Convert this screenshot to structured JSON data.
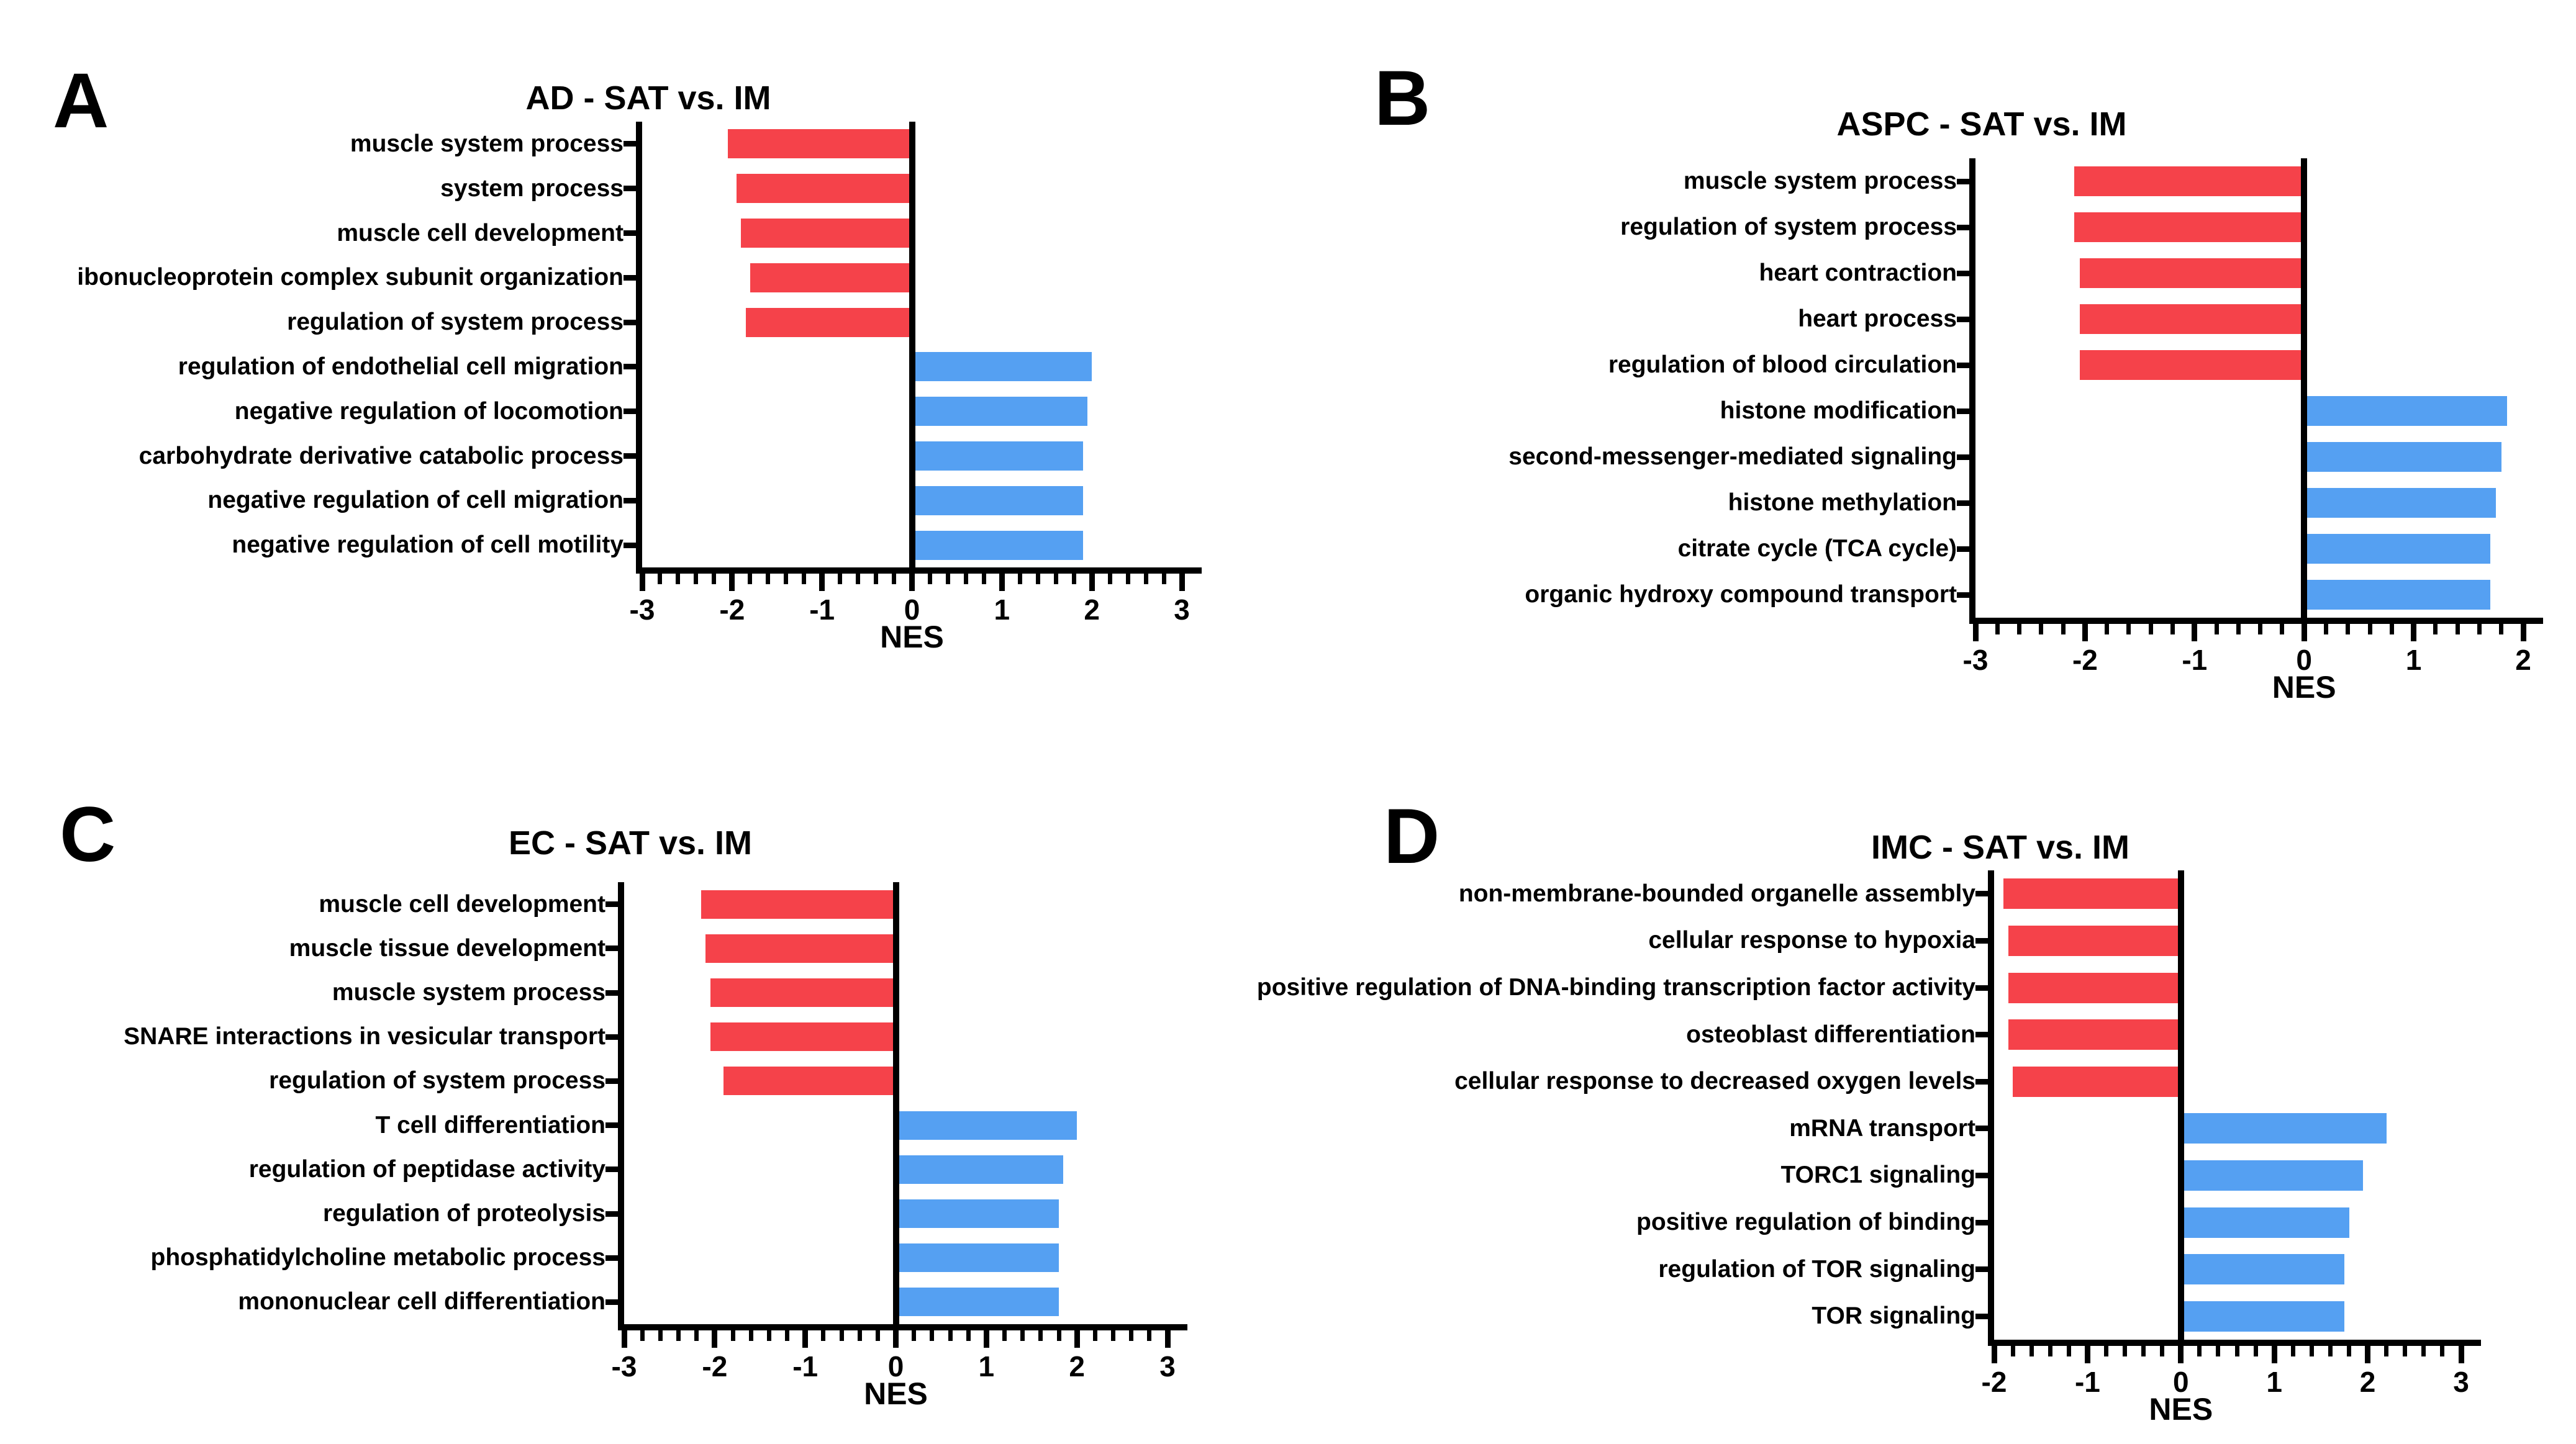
{
  "figure": {
    "xlabel": "NES",
    "colors": {
      "negative_bar": "#F5424A",
      "positive_bar": "#55A0F2",
      "axis": "#000000",
      "background": "#FFFFFF"
    }
  },
  "chart_data": [
    {
      "id": "A",
      "letter": "A",
      "type": "bar",
      "title": "AD - SAT vs. IM",
      "xlabel": "NES",
      "xlim": [
        -3,
        3
      ],
      "xticks": [
        -3,
        -2,
        -1,
        0,
        1,
        2,
        3
      ],
      "minor_tick_step": 0.2,
      "legend": "none",
      "grid": false,
      "categories": [
        "muscle system process",
        "system process",
        "muscle cell development",
        "ibonucleoprotein complex subunit organization",
        "regulation of system process",
        "regulation of endothelial cell migration",
        "negative regulation of locomotion",
        "carbohydrate derivative catabolic process",
        "negative regulation of cell migration",
        "negative regulation of cell motility"
      ],
      "values": [
        -2.05,
        -1.95,
        -1.9,
        -1.8,
        -1.85,
        2.0,
        1.95,
        1.9,
        1.9,
        1.9
      ]
    },
    {
      "id": "B",
      "letter": "B",
      "type": "bar",
      "title": "ASPC - SAT vs. IM",
      "xlabel": "NES",
      "xlim": [
        -3,
        2
      ],
      "xticks": [
        -3,
        -2,
        -1,
        0,
        1,
        2
      ],
      "minor_tick_step": 0.2,
      "legend": "none",
      "grid": false,
      "categories": [
        "muscle system process",
        "regulation of system process",
        "heart contraction",
        "heart process",
        "regulation of blood circulation",
        "histone modification",
        "second-messenger-mediated signaling",
        "histone methylation",
        "citrate cycle (TCA cycle)",
        "organic hydroxy compound transport"
      ],
      "values": [
        -2.1,
        -2.1,
        -2.05,
        -2.05,
        -2.05,
        1.85,
        1.8,
        1.75,
        1.7,
        1.7
      ]
    },
    {
      "id": "C",
      "letter": "C",
      "type": "bar",
      "title": "EC - SAT vs. IM",
      "xlabel": "NES",
      "xlim": [
        -3,
        3
      ],
      "xticks": [
        -3,
        -2,
        -1,
        0,
        1,
        2,
        3
      ],
      "minor_tick_step": 0.2,
      "legend": "none",
      "grid": false,
      "categories": [
        "muscle cell development",
        "muscle tissue development",
        "muscle system process",
        "SNARE interactions in vesicular transport",
        "regulation of system process",
        "T cell differentiation",
        "regulation of peptidase activity",
        "regulation of proteolysis",
        "phosphatidylcholine metabolic process",
        "mononuclear cell differentiation"
      ],
      "values": [
        -2.15,
        -2.1,
        -2.05,
        -2.05,
        -1.9,
        2.0,
        1.85,
        1.8,
        1.8,
        1.8
      ]
    },
    {
      "id": "D",
      "letter": "D",
      "type": "bar",
      "title": "IMC - SAT vs. IM",
      "xlabel": "NES",
      "xlim": [
        -2,
        3
      ],
      "xticks": [
        -2,
        -1,
        0,
        1,
        2,
        3
      ],
      "minor_tick_step": 0.2,
      "legend": "none",
      "grid": false,
      "categories": [
        "non-membrane-bounded organelle assembly",
        "cellular response to hypoxia",
        "positive regulation of DNA-binding transcription factor activity",
        "osteoblast differentiation",
        "cellular response to decreased oxygen levels",
        "mRNA transport",
        "TORC1 signaling",
        "positive regulation of binding",
        "regulation of TOR signaling",
        "TOR signaling"
      ],
      "values": [
        -1.9,
        -1.85,
        -1.85,
        -1.85,
        -1.8,
        2.2,
        1.95,
        1.8,
        1.75,
        1.75
      ]
    }
  ]
}
